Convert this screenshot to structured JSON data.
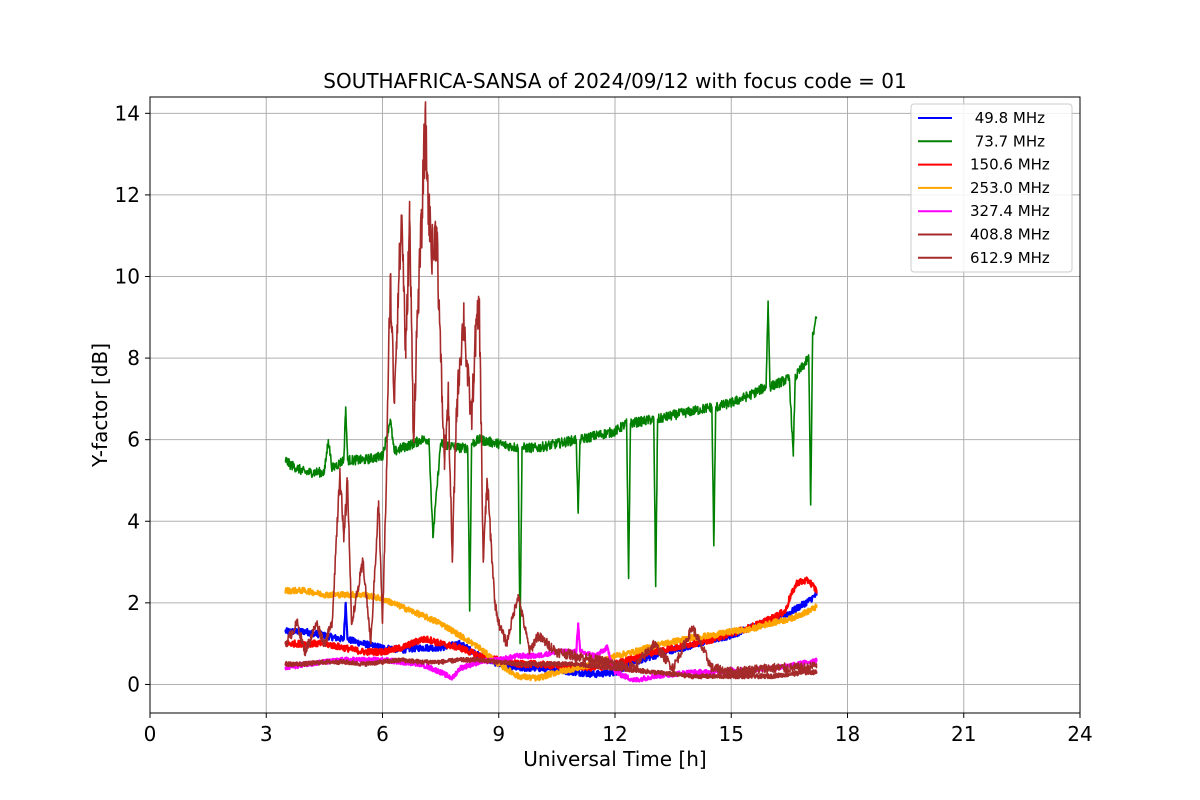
{
  "chart_data": {
    "type": "line",
    "title": "SOUTHAFRICA-SANSA of 2024/09/12 with focus code = 01",
    "xlabel": "Universal Time [h]",
    "ylabel": "Y-factor [dB]",
    "xlim": [
      0,
      24
    ],
    "ylim": [
      -0.7,
      14.4
    ],
    "xticks": [
      0,
      3,
      6,
      9,
      12,
      15,
      18,
      21,
      24
    ],
    "yticks": [
      0,
      2,
      4,
      6,
      8,
      10,
      12,
      14
    ],
    "xtick_labels": [
      "0",
      "3",
      "6",
      "9",
      "12",
      "15",
      "18",
      "21",
      "24"
    ],
    "ytick_labels": [
      "0",
      "2",
      "4",
      "6",
      "8",
      "10",
      "12",
      "14"
    ],
    "grid": true,
    "legend_position": "top-right",
    "series": [
      {
        "name": " 49.8 MHz",
        "color": "#0000ff",
        "x": [
          3.5,
          4.0,
          4.5,
          5.0,
          5.05,
          5.1,
          5.5,
          6.0,
          6.5,
          7.0,
          7.5,
          8.0,
          8.5,
          9.0,
          9.5,
          10.0,
          10.5,
          11.0,
          11.5,
          12.0,
          12.5,
          13.0,
          13.5,
          14.0,
          14.5,
          15.0,
          15.5,
          16.0,
          16.5,
          17.0,
          17.2
        ],
        "y": [
          1.3,
          1.3,
          1.2,
          1.1,
          2.0,
          1.1,
          1.0,
          0.9,
          0.85,
          0.9,
          0.9,
          1.0,
          0.7,
          0.5,
          0.4,
          0.4,
          0.35,
          0.3,
          0.25,
          0.3,
          0.55,
          0.7,
          0.85,
          0.95,
          1.1,
          1.2,
          1.4,
          1.55,
          1.75,
          2.05,
          2.2
        ]
      },
      {
        "name": " 73.7 MHz",
        "color": "#008000",
        "x": [
          3.5,
          3.6,
          4.0,
          4.5,
          4.6,
          4.7,
          5.0,
          5.05,
          5.1,
          5.5,
          6.0,
          6.2,
          6.3,
          6.5,
          6.8,
          7.0,
          7.2,
          7.3,
          7.5,
          8.0,
          8.2,
          8.25,
          8.3,
          8.5,
          9.0,
          9.5,
          9.55,
          9.6,
          10.0,
          10.5,
          11.0,
          11.05,
          11.1,
          11.5,
          12.0,
          12.3,
          12.35,
          12.4,
          13.0,
          13.05,
          13.1,
          13.5,
          14.0,
          14.5,
          14.55,
          14.6,
          15.0,
          15.5,
          15.9,
          15.95,
          16.0,
          16.5,
          16.6,
          16.65,
          16.7,
          17.0,
          17.05,
          17.1,
          17.2
        ],
        "y": [
          5.5,
          5.4,
          5.2,
          5.2,
          6.0,
          5.3,
          5.5,
          6.8,
          5.5,
          5.5,
          5.6,
          6.5,
          5.7,
          5.8,
          5.9,
          6.0,
          6.0,
          3.6,
          5.9,
          5.8,
          5.8,
          1.8,
          5.9,
          6.0,
          5.9,
          5.8,
          1.0,
          5.8,
          5.8,
          5.9,
          6.0,
          4.2,
          6.0,
          6.1,
          6.2,
          6.4,
          2.6,
          6.4,
          6.5,
          2.4,
          6.5,
          6.6,
          6.7,
          6.8,
          3.4,
          6.8,
          6.9,
          7.1,
          7.3,
          9.4,
          7.3,
          7.5,
          5.6,
          7.5,
          7.6,
          8.0,
          4.4,
          8.5,
          9.0
        ]
      },
      {
        "name": "150.6 MHz",
        "color": "#ff0000",
        "x": [
          3.5,
          4.0,
          4.5,
          5.0,
          5.5,
          6.0,
          6.5,
          7.0,
          7.2,
          7.5,
          8.0,
          8.5,
          9.0,
          9.5,
          10.0,
          10.5,
          11.0,
          11.5,
          12.0,
          12.5,
          13.0,
          13.5,
          14.0,
          14.5,
          15.0,
          15.5,
          16.0,
          16.4,
          16.5,
          16.7,
          17.0,
          17.2
        ],
        "y": [
          1.0,
          1.0,
          1.0,
          0.9,
          0.8,
          0.8,
          0.9,
          1.1,
          1.1,
          1.0,
          0.9,
          0.7,
          0.6,
          0.5,
          0.5,
          0.45,
          0.45,
          0.4,
          0.5,
          0.65,
          0.8,
          0.9,
          1.0,
          1.1,
          1.25,
          1.4,
          1.6,
          1.8,
          2.1,
          2.5,
          2.55,
          2.3
        ]
      },
      {
        "name": "253.0 MHz",
        "color": "#ffa500",
        "x": [
          3.5,
          4.0,
          4.5,
          5.0,
          5.5,
          6.0,
          6.5,
          7.0,
          7.5,
          8.0,
          8.5,
          9.0,
          9.5,
          10.0,
          10.5,
          11.0,
          11.5,
          12.0,
          12.5,
          13.0,
          13.5,
          14.0,
          14.5,
          15.0,
          15.5,
          16.0,
          16.5,
          17.0,
          17.2
        ],
        "y": [
          2.3,
          2.3,
          2.2,
          2.2,
          2.2,
          2.1,
          1.9,
          1.7,
          1.5,
          1.2,
          0.9,
          0.5,
          0.2,
          0.15,
          0.3,
          0.4,
          0.5,
          0.7,
          0.8,
          0.95,
          1.05,
          1.15,
          1.2,
          1.3,
          1.35,
          1.5,
          1.6,
          1.8,
          1.9
        ]
      },
      {
        "name": "327.4 MHz",
        "color": "#ff00ff",
        "x": [
          3.5,
          4.0,
          4.5,
          5.0,
          5.5,
          6.0,
          6.5,
          7.0,
          7.5,
          7.8,
          8.0,
          8.5,
          9.0,
          9.5,
          10.0,
          10.5,
          11.0,
          11.05,
          11.1,
          11.5,
          11.8,
          12.0,
          12.5,
          13.0,
          13.5,
          14.0,
          14.5,
          15.0,
          15.5,
          16.0,
          16.5,
          17.0,
          17.2
        ],
        "y": [
          0.4,
          0.5,
          0.55,
          0.6,
          0.6,
          0.6,
          0.55,
          0.5,
          0.3,
          0.15,
          0.4,
          0.55,
          0.6,
          0.7,
          0.7,
          0.8,
          0.8,
          1.5,
          0.8,
          0.7,
          0.9,
          0.3,
          0.1,
          0.2,
          0.25,
          0.3,
          0.3,
          0.35,
          0.35,
          0.4,
          0.45,
          0.55,
          0.6
        ]
      },
      {
        "name": "408.8 MHz",
        "color": "#a52a2a",
        "x": [
          3.5,
          4.0,
          4.5,
          5.0,
          5.5,
          6.0,
          6.5,
          7.0,
          7.5,
          8.0,
          8.5,
          9.0,
          9.5,
          10.0,
          10.5,
          11.0,
          11.5,
          12.0,
          12.5,
          13.0,
          13.5,
          14.0,
          14.5,
          15.0,
          15.5,
          16.0,
          16.5,
          17.0,
          17.2
        ],
        "y": [
          0.5,
          0.5,
          0.55,
          0.55,
          0.5,
          0.55,
          0.6,
          0.55,
          0.55,
          0.6,
          0.6,
          0.55,
          0.5,
          0.5,
          0.5,
          0.5,
          0.45,
          0.4,
          0.35,
          0.3,
          0.25,
          0.2,
          0.2,
          0.2,
          0.2,
          0.2,
          0.25,
          0.3,
          0.3
        ]
      },
      {
        "name": "612.9 MHz",
        "color": "#a52a2a",
        "x": [
          3.5,
          3.8,
          4.0,
          4.3,
          4.5,
          4.7,
          4.9,
          5.0,
          5.1,
          5.2,
          5.3,
          5.5,
          5.7,
          5.9,
          6.0,
          6.1,
          6.2,
          6.3,
          6.4,
          6.5,
          6.6,
          6.7,
          6.8,
          6.9,
          7.0,
          7.1,
          7.2,
          7.3,
          7.4,
          7.5,
          7.6,
          7.7,
          7.8,
          7.9,
          8.0,
          8.1,
          8.2,
          8.3,
          8.4,
          8.5,
          8.6,
          8.7,
          8.8,
          8.9,
          9.0,
          9.2,
          9.5,
          9.8,
          10.0,
          10.5,
          11.0,
          11.5,
          12.0,
          12.5,
          13.0,
          13.5,
          14.0,
          14.5,
          15.0,
          16.0,
          17.0,
          17.2
        ],
        "y": [
          1.0,
          1.5,
          0.8,
          1.5,
          1.0,
          1.5,
          5.3,
          3.5,
          5.0,
          1.5,
          2.0,
          3.0,
          1.0,
          4.5,
          1.5,
          5.0,
          10.0,
          7.0,
          9.5,
          11.5,
          8.0,
          11.4,
          6.0,
          9.0,
          11.0,
          13.7,
          11.5,
          10.5,
          11.2,
          8.0,
          5.5,
          7.0,
          3.0,
          6.5,
          8.0,
          9.0,
          7.5,
          6.5,
          8.5,
          9.2,
          3.0,
          5.0,
          3.5,
          2.0,
          1.5,
          1.0,
          2.2,
          0.8,
          1.2,
          0.8,
          0.7,
          0.6,
          0.5,
          0.4,
          1.0,
          0.4,
          1.4,
          0.4,
          0.3,
          0.4,
          0.4,
          0.5
        ]
      }
    ]
  }
}
